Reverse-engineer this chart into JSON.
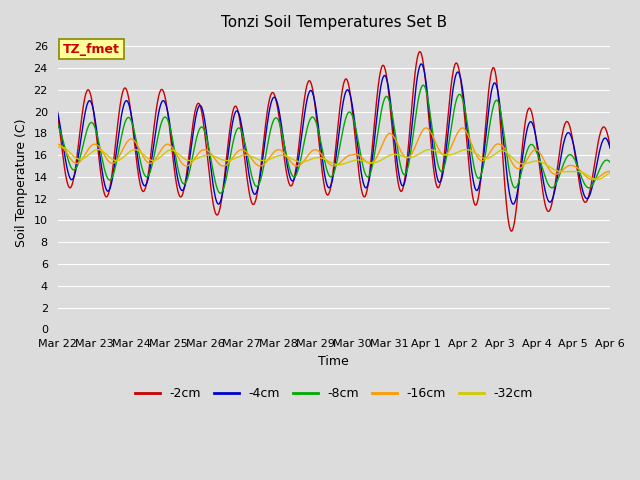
{
  "title": "Tonzi Soil Temperatures Set B",
  "xlabel": "Time",
  "ylabel": "Soil Temperature (C)",
  "ylim": [
    0,
    27
  ],
  "yticks": [
    0,
    2,
    4,
    6,
    8,
    10,
    12,
    14,
    16,
    18,
    20,
    22,
    24,
    26
  ],
  "background_color": "#dcdcdc",
  "plot_bg_color": "#dcdcdc",
  "grid_color": "#ffffff",
  "legend_label": "TZ_fmet",
  "legend_bg": "#ffff99",
  "legend_border": "#888800",
  "series_colors": {
    "-2cm": "#cc0000",
    "-4cm": "#0000cc",
    "-8cm": "#00aa00",
    "-16cm": "#ff9900",
    "-32cm": "#cccc00"
  },
  "tick_labels": [
    "Mar 22",
    "Mar 23",
    "Mar 24",
    "Mar 25",
    "Mar 26",
    "Mar 27",
    "Mar 28",
    "Mar 29",
    "Mar 30",
    "Mar 31",
    "Apr 1",
    "Apr 2",
    "Apr 3",
    "Apr 4",
    "Apr 5",
    "Apr 6"
  ],
  "n_days": 15,
  "figwidth": 6.4,
  "figheight": 4.8,
  "dpi": 100
}
